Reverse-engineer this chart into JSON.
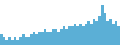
{
  "values": [
    4,
    3,
    2,
    3,
    2,
    3,
    2,
    3,
    4,
    3,
    3,
    4,
    5,
    4,
    5,
    5,
    6,
    5,
    5,
    6,
    6,
    5,
    6,
    7,
    6,
    7,
    7,
    8,
    7,
    8,
    7,
    8,
    9,
    8,
    10,
    9,
    11,
    15,
    12,
    9,
    10,
    8,
    9,
    7
  ],
  "bar_color": "#5bafd6",
  "background_color": "#ffffff",
  "ylim_max": 17,
  "figsize": [
    1.2,
    0.45
  ],
  "dpi": 100
}
